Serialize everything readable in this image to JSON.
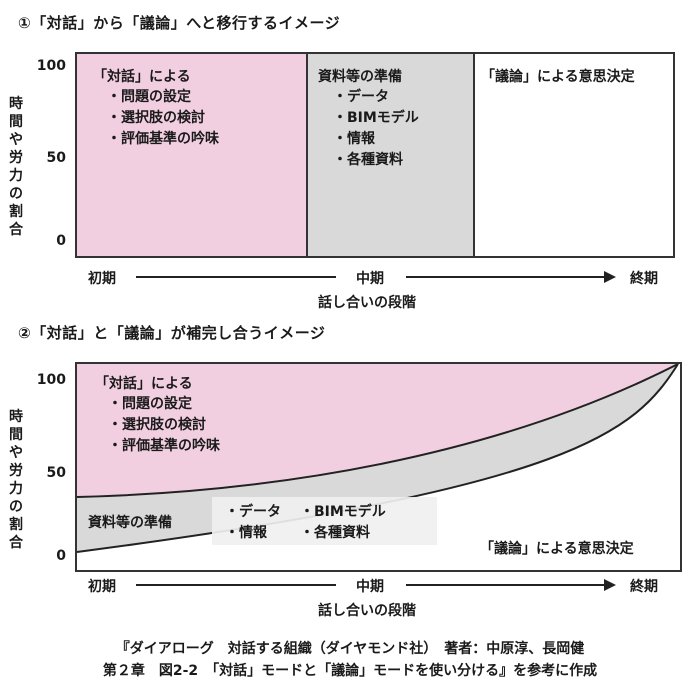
{
  "diagram1": {
    "heading": "①「対話」から「議論」へと移行するイメージ",
    "y_ticks": [
      "100",
      "50",
      "0"
    ],
    "y_label_chars": [
      "時",
      "間",
      "や",
      "労",
      "力",
      "の",
      "割",
      "合"
    ],
    "zones": [
      {
        "title": "「対話」による",
        "items": [
          "問題の設定",
          "選択肢の検討",
          "評価基準の吟味"
        ],
        "color": "#f2cfe0"
      },
      {
        "title": "資料等の準備",
        "items": [
          "データ",
          "BIMモデル",
          "情報",
          "各種資料"
        ],
        "color": "#d9d9d9"
      },
      {
        "title": "「議論」による意思決定",
        "items": [],
        "color": "#ffffff"
      }
    ],
    "x_axis": {
      "start": "初期",
      "middle": "中期",
      "end": "終期",
      "label": "話し合いの段階"
    }
  },
  "diagram2": {
    "heading": "②「対話」と「議論」が補完し合うイメージ",
    "y_ticks": [
      "100",
      "50",
      "0"
    ],
    "y_label_chars": [
      "時",
      "間",
      "や",
      "労",
      "力",
      "の",
      "割",
      "合"
    ],
    "dialogue": {
      "title": "「対話」による",
      "items": [
        "問題の設定",
        "選択肢の検討",
        "評価基準の吟味"
      ],
      "color": "#f2cfe0"
    },
    "prep": {
      "title": "資料等の準備",
      "items_left": [
        "データ",
        "情報"
      ],
      "items_right": [
        "BIMモデル",
        "各種資料"
      ],
      "color": "#d9d9d9"
    },
    "debate": {
      "title": "「議論」による意思決定",
      "color": "#ffffff"
    },
    "x_axis": {
      "start": "初期",
      "middle": "中期",
      "end": "終期",
      "label": "話し合いの段階"
    }
  },
  "caption": {
    "line1": "『ダイアローグ　対話する組織（ダイヤモンド社）　著者：中原淳、長岡健",
    "line2": "第２章　図2-2　「対話」モードと「議論」モードを使い分ける』を参考に作成"
  }
}
